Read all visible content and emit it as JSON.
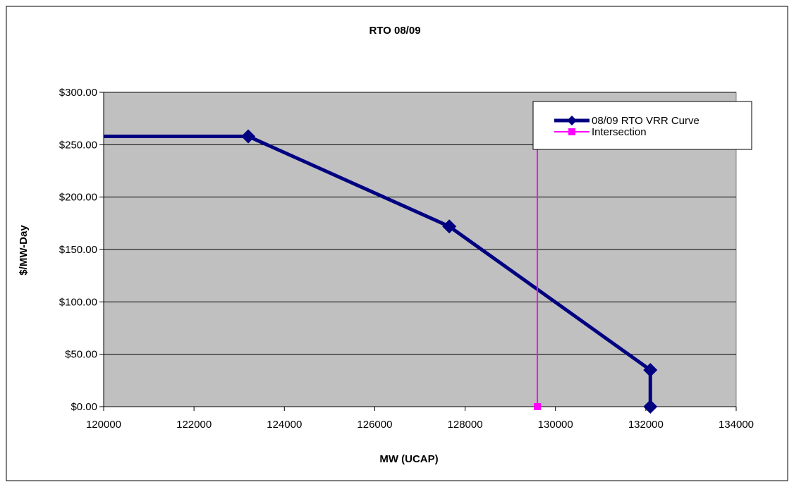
{
  "colors": {
    "plot_background": "#c0c0c0",
    "vrr_curve": "#000080",
    "intersection": "#ff00ff",
    "gridline": "#000000"
  },
  "chart_data": {
    "type": "line",
    "title": "RTO 08/09",
    "xlabel": "MW (UCAP)",
    "ylabel": "$/MW-Day",
    "xlim": [
      120000,
      134000
    ],
    "ylim": [
      0,
      300
    ],
    "x_ticks": [
      120000,
      122000,
      124000,
      126000,
      128000,
      130000,
      132000,
      134000
    ],
    "x_tick_labels": [
      "120000",
      "122000",
      "124000",
      "126000",
      "128000",
      "130000",
      "132000",
      "134000"
    ],
    "y_ticks": [
      0,
      50,
      100,
      150,
      200,
      250,
      300
    ],
    "y_tick_labels": [
      "$0.00",
      "$50.00",
      "$100.00",
      "$150.00",
      "$200.00",
      "$250.00",
      "$300.00"
    ],
    "grid": "horizontal",
    "legend_position": "top-right",
    "series": [
      {
        "name": "08/09 RTO VRR Curve",
        "marker": "diamond",
        "x": [
          120000,
          123200,
          127650,
          132100,
          132100
        ],
        "y": [
          258,
          258,
          172,
          35,
          0
        ],
        "marked": [
          false,
          true,
          true,
          true,
          true
        ]
      },
      {
        "name": "Intersection",
        "marker": "square",
        "x": [
          129600,
          129600
        ],
        "y": [
          0,
          258
        ],
        "marked": [
          true,
          false
        ]
      }
    ]
  }
}
